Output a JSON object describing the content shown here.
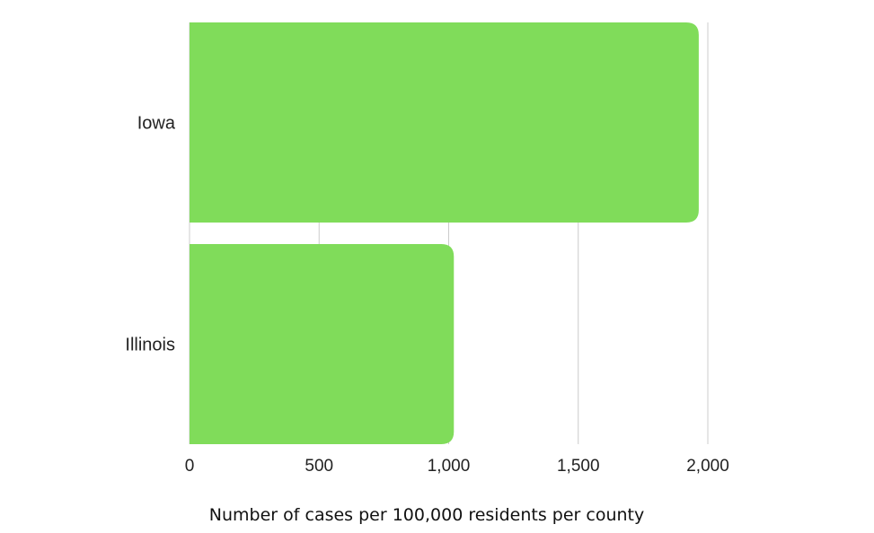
{
  "chart_data": {
    "type": "bar",
    "orientation": "horizontal",
    "categories": [
      "Iowa",
      "Illinois"
    ],
    "values": [
      1965,
      1020
    ],
    "xlabel": "Number of cases per 100,000 residents per county",
    "ylabel": "",
    "xlim": [
      0,
      2000
    ],
    "xticks": [
      0,
      500,
      1000,
      1500,
      2000
    ],
    "xtick_labels": [
      "0",
      "500",
      "1,000",
      "1,500",
      "2,000"
    ],
    "grid": "vertical",
    "bar_color": "#80dc5a",
    "grid_color": "#cccccc"
  }
}
